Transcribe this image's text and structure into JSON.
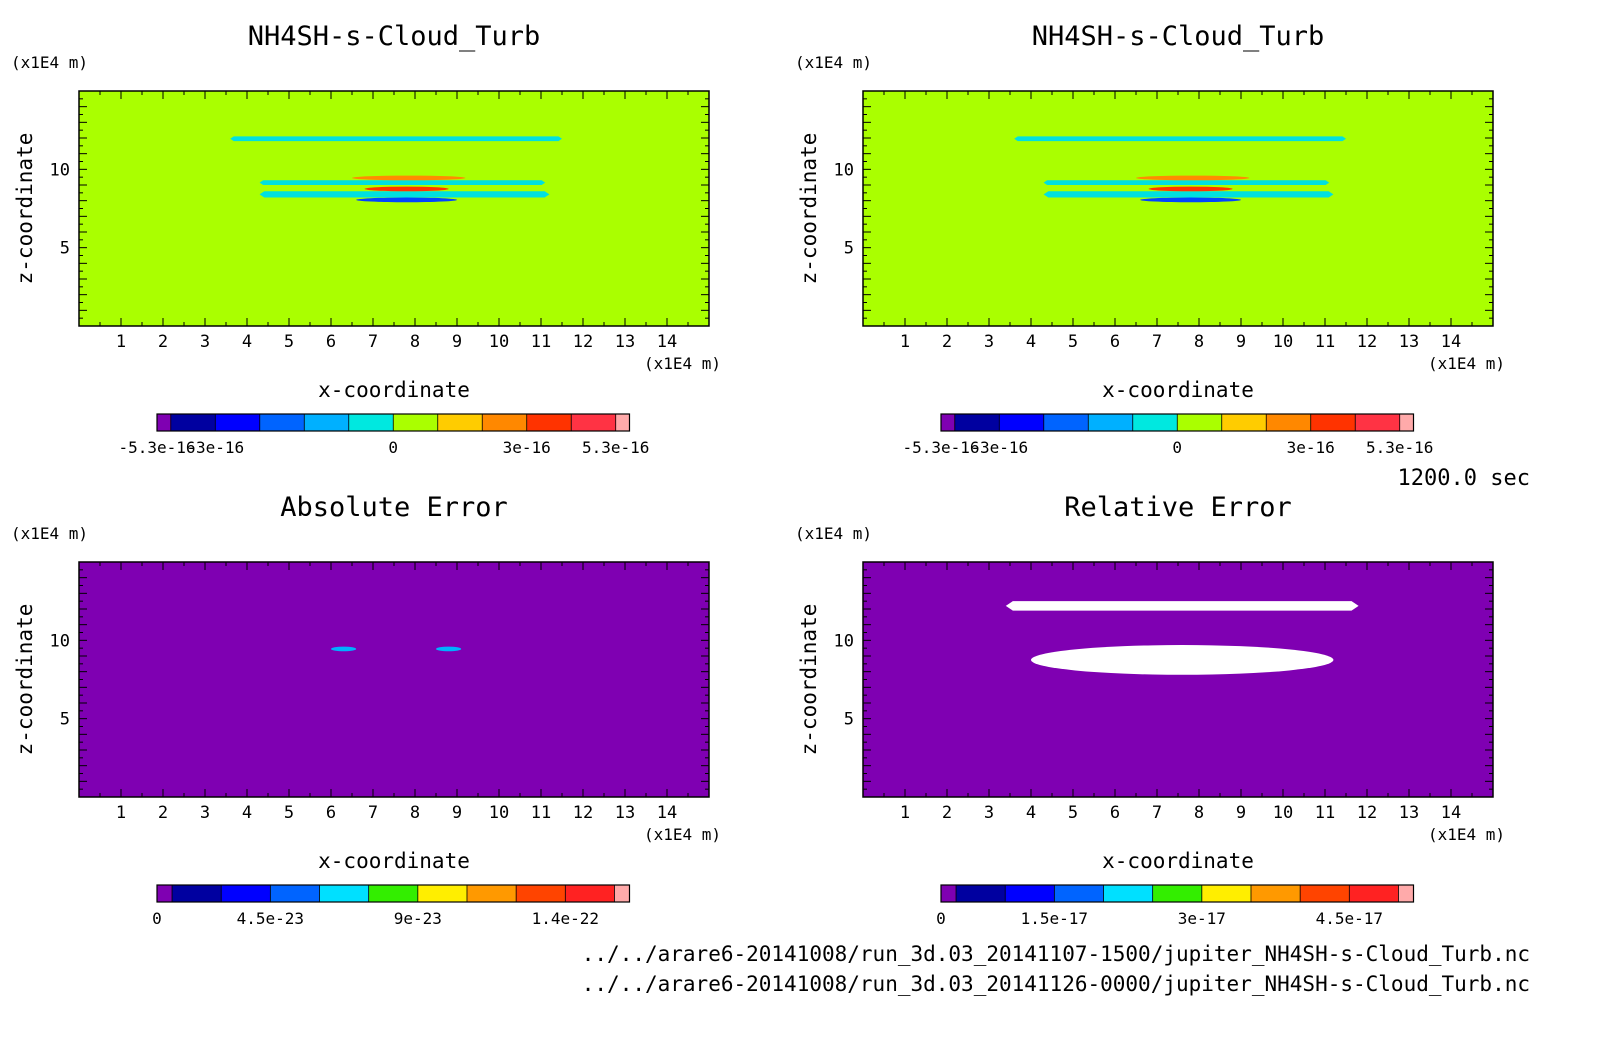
{
  "chart_data": [
    {
      "type": "heatmap",
      "title": "NH4SH-s-Cloud_Turb",
      "xlabel": "x-coordinate",
      "ylabel": "z-coordinate",
      "x_unit": "(x1E4 m)",
      "y_unit": "(x1E4 m)",
      "xlim": [
        0,
        15
      ],
      "ylim": [
        0,
        15
      ],
      "x_ticks": [
        1,
        2,
        3,
        4,
        5,
        6,
        7,
        8,
        9,
        10,
        11,
        12,
        13,
        14
      ],
      "y_ticks": [
        5,
        10
      ],
      "background_color": "#aaff00",
      "features": [
        {
          "kind": "band",
          "x": [
            3.6,
            11.5
          ],
          "z": [
            11.8,
            12.1
          ],
          "color": "#00e0e0"
        },
        {
          "kind": "band",
          "x": [
            4.3,
            11.1
          ],
          "z": [
            9.0,
            9.3
          ],
          "color": "#00e0e0"
        },
        {
          "kind": "band",
          "x": [
            4.3,
            11.2
          ],
          "z": [
            8.2,
            8.6
          ],
          "color": "#00e0e0"
        },
        {
          "kind": "blob",
          "x": [
            6.5,
            9.2
          ],
          "z": [
            9.3,
            9.6
          ],
          "color": "#ff8c00"
        },
        {
          "kind": "blob",
          "x": [
            6.8,
            8.8
          ],
          "z": [
            8.6,
            8.9
          ],
          "color": "#ff3300"
        },
        {
          "kind": "blob",
          "x": [
            6.6,
            9.0
          ],
          "z": [
            7.9,
            8.2
          ],
          "color": "#0044ff"
        }
      ],
      "colorbar": {
        "colors": [
          "#7f00b2",
          "#0000a0",
          "#0000ff",
          "#0064ff",
          "#00b0ff",
          "#00e8e0",
          "#aaff00",
          "#ffcc00",
          "#ff8800",
          "#ff3300",
          "#ff3344",
          "#ffaaaa"
        ],
        "labels": [
          "-5.3e-16",
          "-3e-16",
          "0",
          "3e-16",
          "5.3e-16"
        ],
        "label_positions": [
          0,
          2,
          6,
          9,
          11
        ]
      }
    },
    {
      "type": "heatmap",
      "title": "NH4SH-s-Cloud_Turb",
      "xlabel": "x-coordinate",
      "ylabel": "z-coordinate",
      "x_unit": "(x1E4 m)",
      "y_unit": "(x1E4 m)",
      "xlim": [
        0,
        15
      ],
      "ylim": [
        0,
        15
      ],
      "x_ticks": [
        1,
        2,
        3,
        4,
        5,
        6,
        7,
        8,
        9,
        10,
        11,
        12,
        13,
        14
      ],
      "y_ticks": [
        5,
        10
      ],
      "background_color": "#aaff00",
      "features": [
        {
          "kind": "band",
          "x": [
            3.6,
            11.5
          ],
          "z": [
            11.8,
            12.1
          ],
          "color": "#00e0e0"
        },
        {
          "kind": "band",
          "x": [
            4.3,
            11.1
          ],
          "z": [
            9.0,
            9.3
          ],
          "color": "#00e0e0"
        },
        {
          "kind": "band",
          "x": [
            4.3,
            11.2
          ],
          "z": [
            8.2,
            8.6
          ],
          "color": "#00e0e0"
        },
        {
          "kind": "blob",
          "x": [
            6.5,
            9.2
          ],
          "z": [
            9.3,
            9.6
          ],
          "color": "#ff8c00"
        },
        {
          "kind": "blob",
          "x": [
            6.8,
            8.8
          ],
          "z": [
            8.6,
            8.9
          ],
          "color": "#ff3300"
        },
        {
          "kind": "blob",
          "x": [
            6.6,
            9.0
          ],
          "z": [
            7.9,
            8.2
          ],
          "color": "#0044ff"
        }
      ],
      "colorbar": {
        "colors": [
          "#7f00b2",
          "#0000a0",
          "#0000ff",
          "#0064ff",
          "#00b0ff",
          "#00e8e0",
          "#aaff00",
          "#ffcc00",
          "#ff8800",
          "#ff3300",
          "#ff3344",
          "#ffaaaa"
        ],
        "labels": [
          "-5.3e-16",
          "-3e-16",
          "0",
          "3e-16",
          "5.3e-16"
        ],
        "label_positions": [
          0,
          2,
          6,
          9,
          11
        ]
      }
    },
    {
      "type": "heatmap",
      "title": "Absolute Error",
      "xlabel": "x-coordinate",
      "ylabel": "z-coordinate",
      "x_unit": "(x1E4 m)",
      "y_unit": "(x1E4 m)",
      "xlim": [
        0,
        15
      ],
      "ylim": [
        0,
        15
      ],
      "x_ticks": [
        1,
        2,
        3,
        4,
        5,
        6,
        7,
        8,
        9,
        10,
        11,
        12,
        13,
        14
      ],
      "y_ticks": [
        5,
        10
      ],
      "background_color": "#7f00b2",
      "features": [
        {
          "kind": "spot",
          "x": [
            6.0,
            6.6
          ],
          "z": [
            9.3,
            9.6
          ],
          "color": "#00b0ff"
        },
        {
          "kind": "spot",
          "x": [
            8.5,
            9.1
          ],
          "z": [
            9.3,
            9.6
          ],
          "color": "#00b0ff"
        }
      ],
      "colorbar": {
        "colors": [
          "#7f00b2",
          "#0000a0",
          "#0000ff",
          "#0064ff",
          "#00e0ff",
          "#33ee00",
          "#ffee00",
          "#ff9900",
          "#ff4400",
          "#ff2222",
          "#ffaaaa"
        ],
        "labels": [
          "0",
          "4.5e-23",
          "9e-23",
          "1.4e-22"
        ],
        "label_positions": [
          0,
          3,
          6,
          9
        ]
      }
    },
    {
      "type": "heatmap",
      "title": "Relative Error",
      "xlabel": "x-coordinate",
      "ylabel": "z-coordinate",
      "x_unit": "(x1E4 m)",
      "y_unit": "(x1E4 m)",
      "xlim": [
        0,
        15
      ],
      "ylim": [
        0,
        15
      ],
      "x_ticks": [
        1,
        2,
        3,
        4,
        5,
        6,
        7,
        8,
        9,
        10,
        11,
        12,
        13,
        14
      ],
      "y_ticks": [
        5,
        10
      ],
      "background_color": "#7f00b2",
      "features": [
        {
          "kind": "band",
          "x": [
            3.4,
            11.8
          ],
          "z": [
            11.9,
            12.5
          ],
          "color": "#ffffff"
        },
        {
          "kind": "blob",
          "x": [
            4.0,
            11.2
          ],
          "z": [
            7.8,
            9.7
          ],
          "color": "#ffffff"
        }
      ],
      "colorbar": {
        "colors": [
          "#7f00b2",
          "#0000a0",
          "#0000ff",
          "#0064ff",
          "#00e0ff",
          "#33ee00",
          "#ffee00",
          "#ff9900",
          "#ff4400",
          "#ff2222",
          "#ffaaaa"
        ],
        "labels": [
          "0",
          "1.5e-17",
          "3e-17",
          "4.5e-17"
        ],
        "label_positions": [
          0,
          3,
          6,
          9
        ]
      }
    }
  ],
  "time_label": "1200.0 sec",
  "file_paths": [
    "../../arare6-20141008/run_3d.03_20141107-1500/jupiter_NH4SH-s-Cloud_Turb.nc",
    "../../arare6-20141008/run_3d.03_20141126-0000/jupiter_NH4SH-s-Cloud_Turb.nc"
  ]
}
